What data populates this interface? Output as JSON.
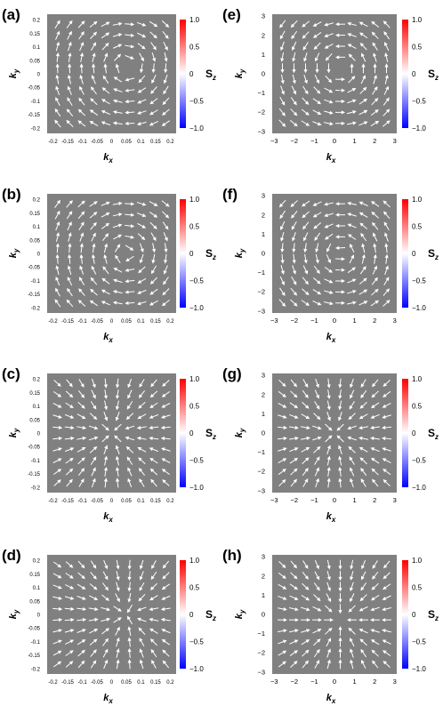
{
  "figure": {
    "colorbar": {
      "label_main": "S",
      "label_sub": "z",
      "ticks": [
        "1.0",
        "0.5",
        "0",
        "−0.5",
        "−1.0"
      ],
      "top_color": "#ff0000",
      "mid_color": "#ffffff",
      "bottom_color": "#0000ff"
    },
    "background_color": "#808080",
    "arrow_color": "#ffffff"
  },
  "chart_data": [
    {
      "panel": "(a)",
      "type": "quiver",
      "xlabel": "k_x",
      "ylabel": "k_y",
      "xlim": [
        -0.22,
        0.22
      ],
      "ylim": [
        -0.22,
        0.22
      ],
      "xticks": [
        "-0.2",
        "-0.15",
        "-0.1",
        "-0.05",
        "0",
        "0.05",
        "0.1",
        "0.15",
        "0.2"
      ],
      "yticks": [
        "0.2",
        "0.15",
        "0.1",
        "0.05",
        "0",
        "-0.05",
        "-0.1",
        "-0.15",
        "-0.2"
      ],
      "field": "spin texture S(k), vortex (clockwise) centred near (0.05, 0.03)",
      "center": [
        0.05,
        0.03
      ],
      "pattern": "vortex",
      "sense": -1,
      "color_by": "S_z"
    },
    {
      "panel": "(b)",
      "type": "quiver",
      "xlabel": "k_x",
      "ylabel": "k_y",
      "xlim": [
        -0.22,
        0.22
      ],
      "ylim": [
        -0.22,
        0.22
      ],
      "xticks": [
        "-0.2",
        "-0.15",
        "-0.1",
        "-0.05",
        "0",
        "0.05",
        "0.1",
        "0.15",
        "0.2"
      ],
      "yticks": [
        "0.2",
        "0.15",
        "0.1",
        "0.05",
        "0",
        "-0.05",
        "-0.1",
        "-0.15",
        "-0.2"
      ],
      "field": "spin texture S(k), vortex (clockwise) centred near (0.05, 0.0)",
      "center": [
        0.05,
        0.0
      ],
      "pattern": "vortex",
      "sense": -1,
      "color_by": "S_z"
    },
    {
      "panel": "(c)",
      "type": "quiver",
      "xlabel": "k_x",
      "ylabel": "k_y",
      "xlim": [
        -0.22,
        0.22
      ],
      "ylim": [
        -0.22,
        0.22
      ],
      "xticks": [
        "-0.2",
        "-0.15",
        "-0.1",
        "-0.05",
        "0",
        "0.05",
        "0.1",
        "0.15",
        "0.2"
      ],
      "yticks": [
        "0.2",
        "0.15",
        "0.1",
        "0.05",
        "0",
        "-0.05",
        "-0.1",
        "-0.15",
        "-0.2"
      ],
      "field": "spin texture S(k), hedgehog (inward) centred near (0.0, 0.0)",
      "center": [
        0.0,
        0.0
      ],
      "pattern": "hedgehog",
      "sense": -1,
      "color_by": "S_z"
    },
    {
      "panel": "(d)",
      "type": "quiver",
      "xlabel": "k_x",
      "ylabel": "k_y",
      "xlim": [
        -0.22,
        0.22
      ],
      "ylim": [
        -0.22,
        0.22
      ],
      "xticks": [
        "-0.2",
        "-0.15",
        "-0.1",
        "-0.05",
        "0",
        "0.05",
        "0.1",
        "0.15",
        "0.2"
      ],
      "yticks": [
        "0.2",
        "0.15",
        "0.1",
        "0.05",
        "0",
        "-0.05",
        "-0.1",
        "-0.15",
        "-0.2"
      ],
      "field": "spin texture S(k), hedgehog (inward) centred near (0.05, 0.0)",
      "center": [
        0.05,
        0.0
      ],
      "pattern": "hedgehog",
      "sense": -1,
      "color_by": "S_z"
    },
    {
      "panel": "(e)",
      "type": "quiver",
      "xlabel": "k_x",
      "ylabel": "k_y",
      "xlim": [
        -3.1,
        3.1
      ],
      "ylim": [
        -3.1,
        3.1
      ],
      "xticks": [
        "−3",
        "−2",
        "−1",
        "0",
        "1",
        "2",
        "3"
      ],
      "yticks": [
        "3",
        "2",
        "1",
        "0",
        "−1",
        "−2",
        "−3"
      ],
      "field": "spin texture S(k), vortex (counter-clockwise) centred near (0.3, 0.3)",
      "center": [
        0.3,
        0.3
      ],
      "pattern": "vortex",
      "sense": 1,
      "color_by": "S_z"
    },
    {
      "panel": "(f)",
      "type": "quiver",
      "xlabel": "k_x",
      "ylabel": "k_y",
      "xlim": [
        -3.1,
        3.1
      ],
      "ylim": [
        -3.1,
        3.1
      ],
      "xticks": [
        "−3",
        "−2",
        "−1",
        "0",
        "1",
        "2",
        "3"
      ],
      "yticks": [
        "3",
        "2",
        "1",
        "0",
        "−1",
        "−2",
        "−3"
      ],
      "field": "spin texture S(k), vortex (counter-clockwise) centred near (0.3, 0.0)",
      "center": [
        0.3,
        0.0
      ],
      "pattern": "vortex",
      "sense": 1,
      "color_by": "S_z"
    },
    {
      "panel": "(g)",
      "type": "quiver",
      "xlabel": "k_x",
      "ylabel": "k_y",
      "xlim": [
        -3.1,
        3.1
      ],
      "ylim": [
        -3.1,
        3.1
      ],
      "xticks": [
        "−3",
        "−2",
        "−1",
        "0",
        "1",
        "2",
        "3"
      ],
      "yticks": [
        "3",
        "2",
        "1",
        "0",
        "−1",
        "−2",
        "−3"
      ],
      "field": "spin texture S(k), hedgehog (inward) centred near (0.0, 0.0)",
      "center": [
        0.0,
        0.0
      ],
      "pattern": "hedgehog",
      "sense": -1,
      "color_by": "S_z"
    },
    {
      "panel": "(h)",
      "type": "quiver",
      "xlabel": "k_x",
      "ylabel": "k_y",
      "xlim": [
        -3.1,
        3.1
      ],
      "ylim": [
        -3.1,
        3.1
      ],
      "xticks": [
        "−3",
        "−2",
        "−1",
        "0",
        "1",
        "2",
        "3"
      ],
      "yticks": [
        "3",
        "2",
        "1",
        "0",
        "−1",
        "−2",
        "−3"
      ],
      "field": "spin texture S(k), hedgehog (inward) centred near (0.3, -0.3)",
      "center": [
        0.3,
        -0.3
      ],
      "pattern": "hedgehog",
      "sense": -1,
      "color_by": "S_z"
    }
  ]
}
